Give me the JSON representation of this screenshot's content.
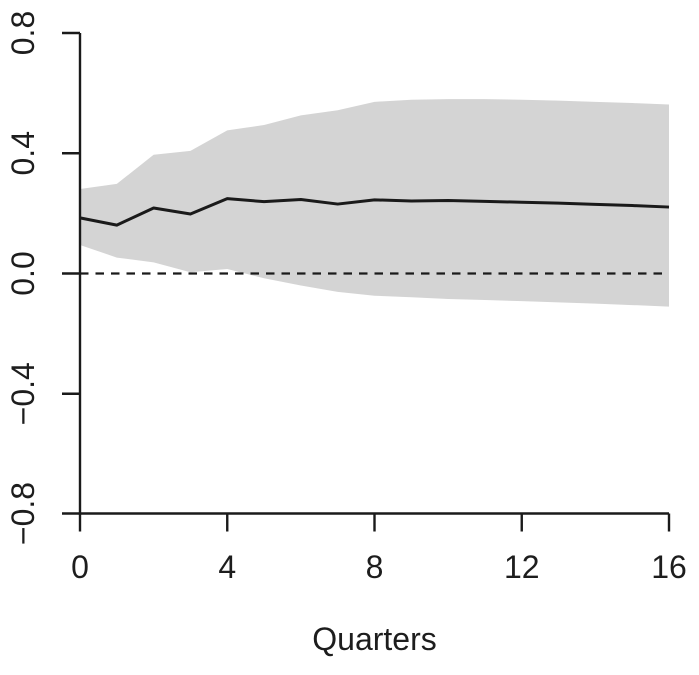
{
  "figure": {
    "background": "#ffffff",
    "kind": "impulse-response-plot"
  },
  "chart_data": {
    "type": "line",
    "title": "",
    "xlabel": "Quarters",
    "ylabel": "",
    "x": [
      0,
      1,
      2,
      3,
      4,
      5,
      6,
      7,
      8,
      9,
      10,
      11,
      12,
      13,
      14,
      15,
      16
    ],
    "series": [
      {
        "name": "irf-estimate",
        "style": "solid",
        "color": "#1a1a1a",
        "values": [
          0.185,
          0.161,
          0.218,
          0.198,
          0.249,
          0.239,
          0.246,
          0.231,
          0.245,
          0.241,
          0.243,
          0.24,
          0.237,
          0.234,
          0.23,
          0.226,
          0.221
        ]
      },
      {
        "name": "confidence-upper",
        "style": "band-edge",
        "color": "#d4d4d4",
        "values": [
          0.281,
          0.298,
          0.395,
          0.408,
          0.476,
          0.494,
          0.526,
          0.543,
          0.571,
          0.578,
          0.58,
          0.58,
          0.578,
          0.575,
          0.571,
          0.567,
          0.562
        ]
      },
      {
        "name": "confidence-lower",
        "style": "band-edge",
        "color": "#d4d4d4",
        "values": [
          0.095,
          0.053,
          0.037,
          0.004,
          0.015,
          -0.016,
          -0.04,
          -0.061,
          -0.074,
          -0.079,
          -0.085,
          -0.088,
          -0.092,
          -0.096,
          -0.1,
          -0.105,
          -0.11
        ]
      }
    ],
    "band_fill": "#d4d4d4",
    "zero_line": {
      "value": 0.0,
      "style": "dashed",
      "color": "#1a1a1a"
    },
    "xlim": [
      0,
      16
    ],
    "ylim": [
      -0.8,
      0.8
    ],
    "xticks": {
      "values": [
        0,
        4,
        8,
        12,
        16
      ],
      "labels": [
        "0",
        "4",
        "8",
        "12",
        "16"
      ]
    },
    "yticks": {
      "values": [
        0.8,
        0.4,
        0.0,
        -0.4,
        -0.8
      ],
      "labels": [
        "0.8",
        "0.4",
        "0.0",
        "−0.4",
        "−0.8"
      ]
    },
    "grid": false,
    "legend": false,
    "axis_color": "#1a1a1a",
    "text_color": "#1d1d1d"
  }
}
